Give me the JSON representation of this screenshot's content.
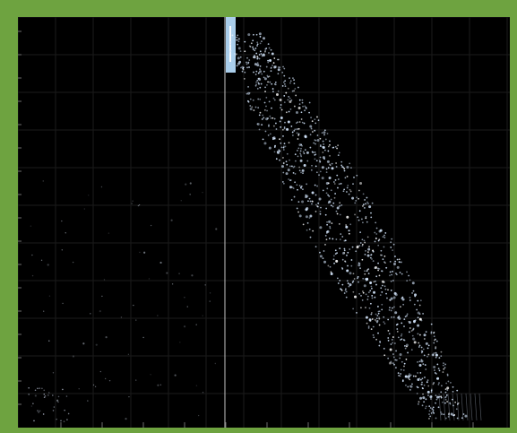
{
  "chart_data": {
    "type": "scatter",
    "title": "",
    "xlabel": "",
    "ylabel": "",
    "series": [
      {
        "name": "",
        "values": []
      }
    ],
    "grid": true,
    "legend": "none"
  },
  "colors": {
    "background": "#000000",
    "frame": "#6ea340",
    "points": "#d6e8ff",
    "highlight_band": "#b9dfff",
    "guide_line": "#cfcfcf",
    "grid": "#1b1b1b"
  }
}
